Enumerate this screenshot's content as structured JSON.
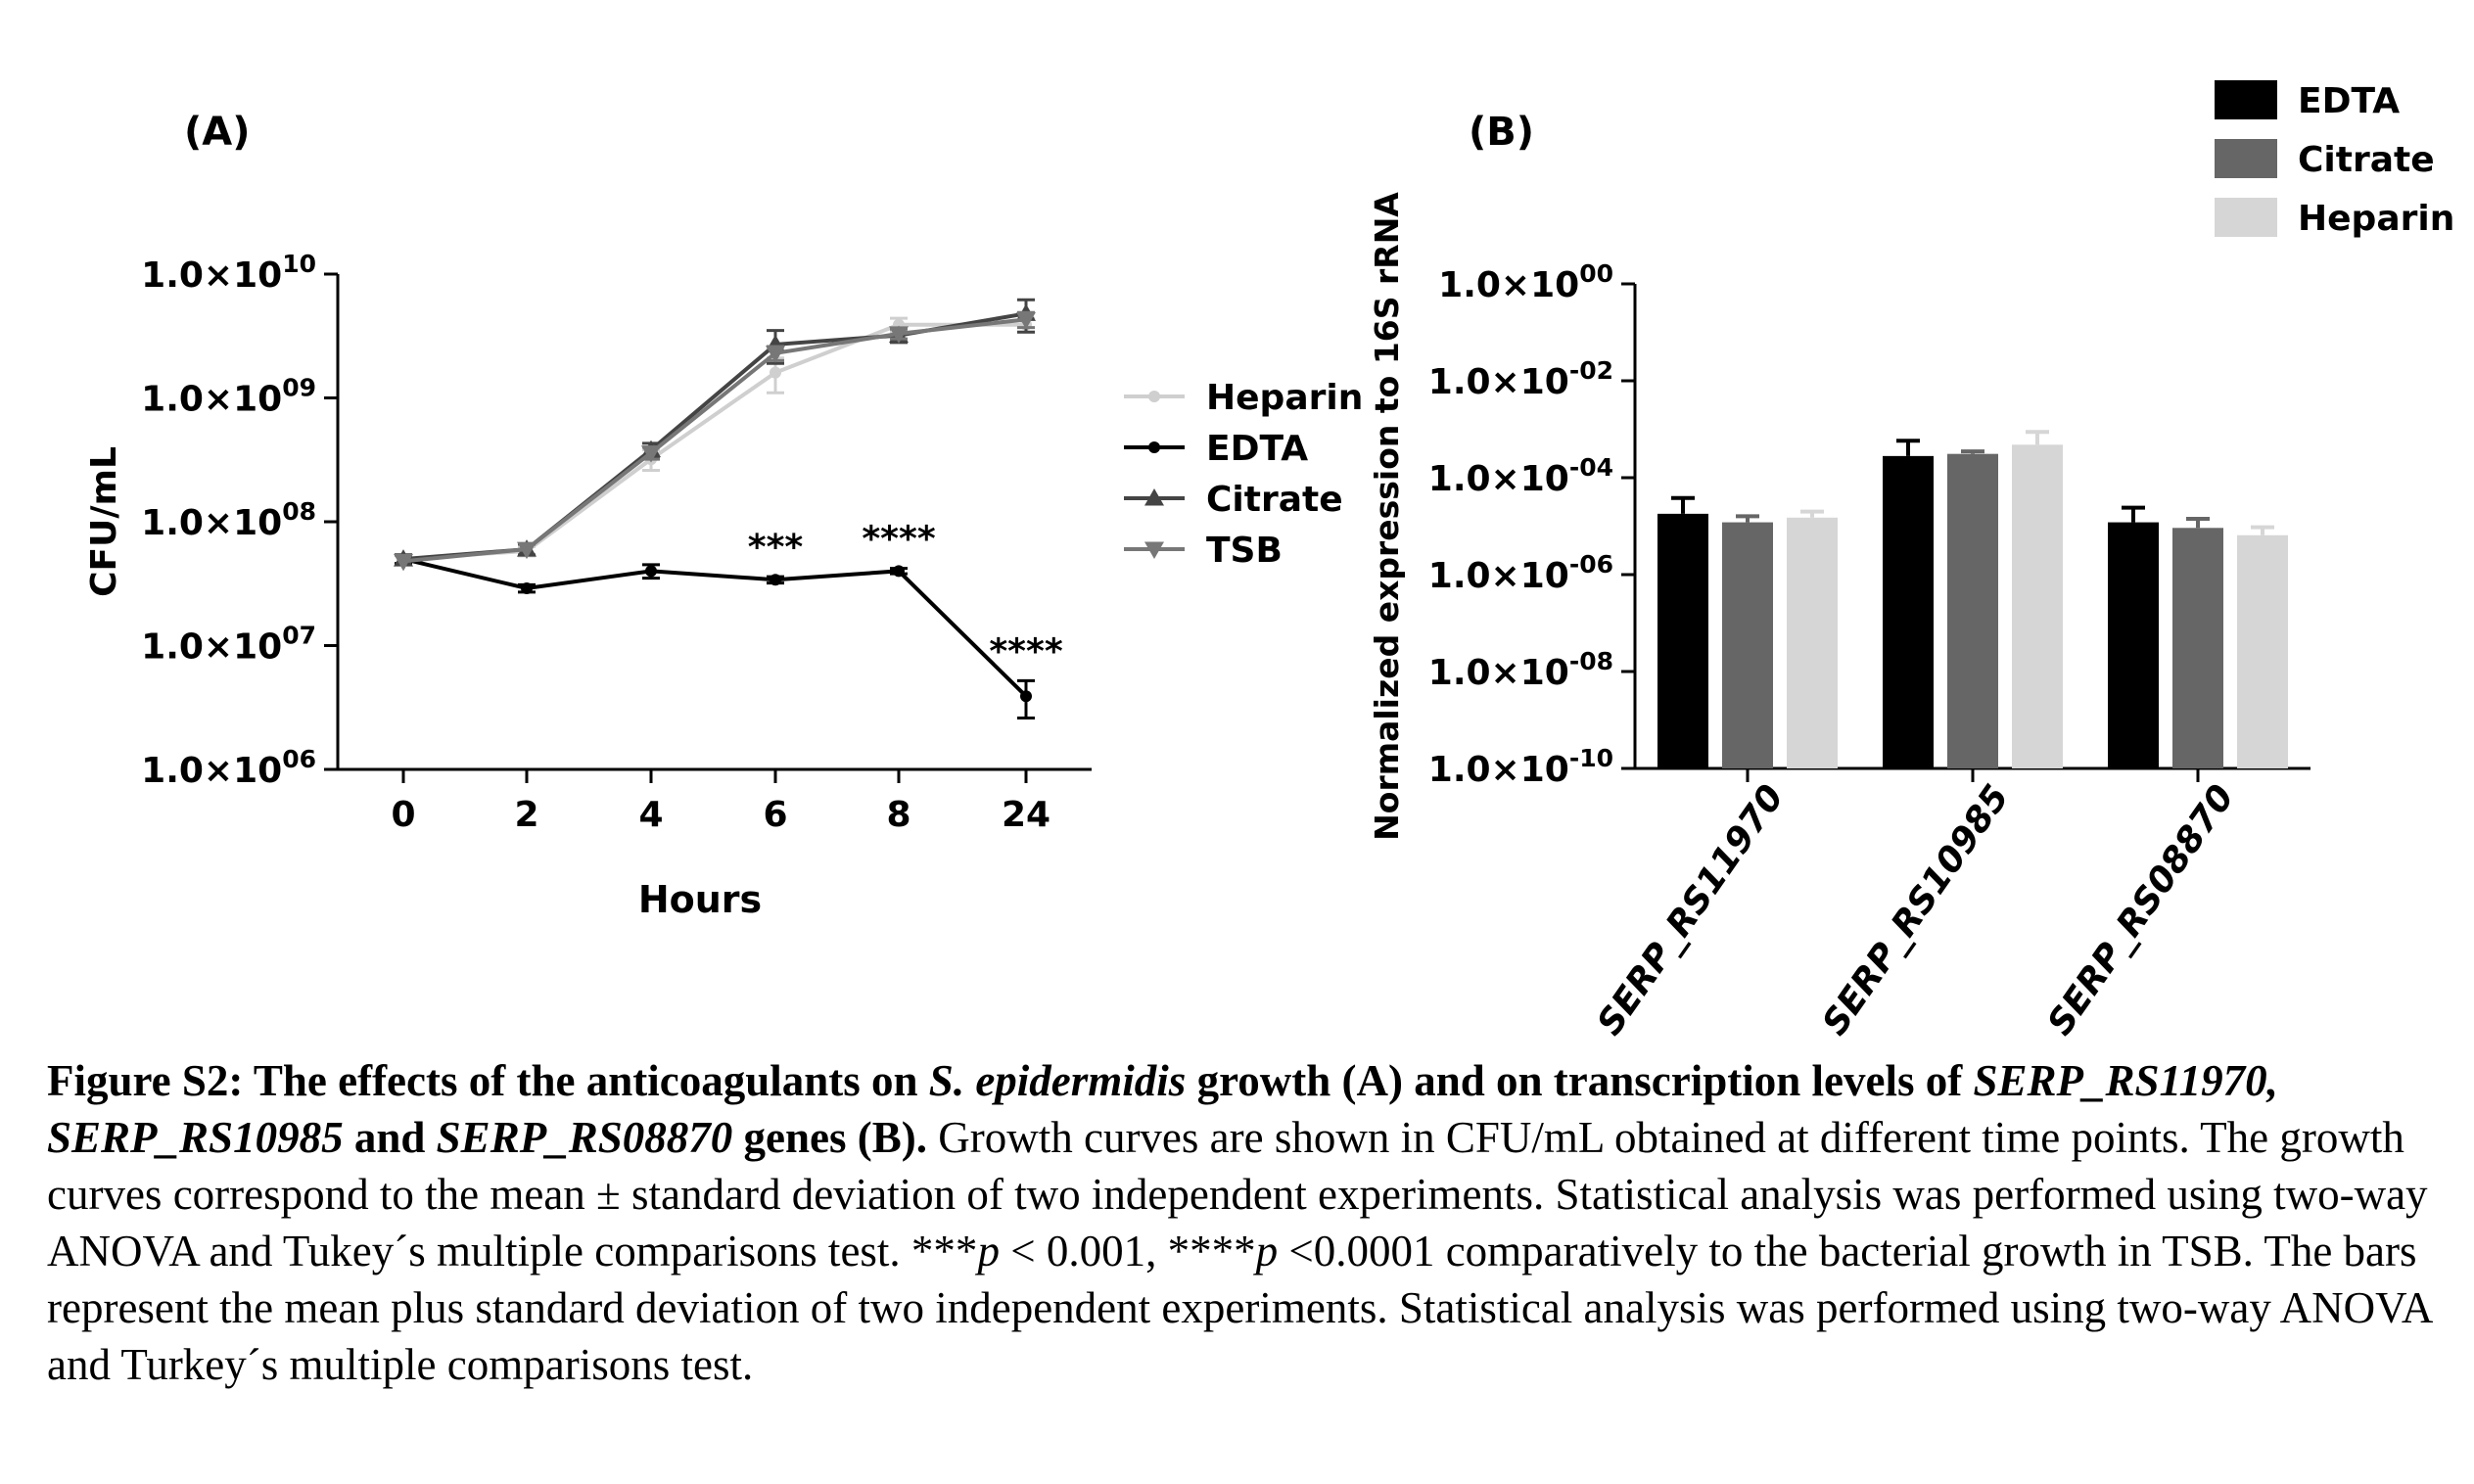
{
  "panel_a_label": "(A)",
  "panel_b_label": "(B)",
  "chart_data": [
    {
      "type": "line",
      "panel": "(A)",
      "xlabel": "Hours",
      "ylabel": "CFU/mL",
      "x": [
        "0",
        "2",
        "4",
        "6",
        "8",
        "24"
      ],
      "yscale": "log",
      "ylim": [
        1000000,
        10000000000
      ],
      "y_ticks": [
        {
          "value": 1000000,
          "mant": "1.0×",
          "base": "10",
          "exp": "06"
        },
        {
          "value": 10000000,
          "mant": "1.0×",
          "base": "10",
          "exp": "07"
        },
        {
          "value": 100000000,
          "mant": "1.0×",
          "base": "10",
          "exp": "08"
        },
        {
          "value": 1000000000,
          "mant": "1.0×",
          "base": "10",
          "exp": "09"
        },
        {
          "value": 10000000000,
          "mant": "1.0×",
          "base": "10",
          "exp": "10"
        }
      ],
      "legend_position": "right",
      "series": [
        {
          "name": "Heparin",
          "color": "#cfcfcf",
          "marker": "circle",
          "values": [
            50000000,
            58000000,
            320000000,
            1600000000,
            3900000000,
            3900000000
          ],
          "err": [
            0,
            5000000,
            60000000,
            500000000,
            500000000,
            500000000
          ]
        },
        {
          "name": "EDTA",
          "color": "#000000",
          "marker": "circle",
          "values": [
            50000000,
            29000000,
            40000000,
            34000000,
            40000000,
            3900000
          ],
          "err": [
            4000000,
            2000000,
            5000000,
            2000000,
            2000000,
            1300000
          ]
        },
        {
          "name": "Citrate",
          "color": "#444444",
          "marker": "triangle-up",
          "values": [
            50000000,
            60000000,
            380000000,
            2700000000,
            3200000000,
            4800000000
          ],
          "err": [
            0,
            6000000,
            50000000,
            800000000,
            400000000,
            1400000000
          ]
        },
        {
          "name": "TSB",
          "color": "#777777",
          "marker": "triangle-down",
          "values": [
            48000000,
            60000000,
            360000000,
            2300000000,
            3300000000,
            4300000000
          ],
          "err": [
            0,
            0,
            40000000,
            300000000,
            300000000,
            600000000
          ]
        }
      ],
      "annotations": [
        {
          "x": "6",
          "text": "***"
        },
        {
          "x": "8",
          "text": "****"
        },
        {
          "x": "24",
          "text": "****"
        }
      ]
    },
    {
      "type": "bar",
      "panel": "(B)",
      "ylabel": "Normalized expression to 16S rRNA",
      "categories": [
        "SERP_RS11970",
        "SERP_RS10985",
        "SERP_RS08870"
      ],
      "yscale": "log",
      "ylim": [
        1e-10,
        1
      ],
      "y_ticks": [
        {
          "value": 1,
          "mant": "1.0×",
          "base": "10",
          "exp": "00"
        },
        {
          "value": 0.01,
          "mant": "1.0×",
          "base": "10",
          "exp": "-02"
        },
        {
          "value": 0.0001,
          "mant": "1.0×",
          "base": "10",
          "exp": "-04"
        },
        {
          "value": 1e-06,
          "mant": "1.0×",
          "base": "10",
          "exp": "-06"
        },
        {
          "value": 1e-08,
          "mant": "1.0×",
          "base": "10",
          "exp": "-08"
        },
        {
          "value": 1e-10,
          "mant": "1.0×",
          "base": "10",
          "exp": "-10"
        }
      ],
      "legend_position": "top-right",
      "series": [
        {
          "name": "EDTA",
          "color": "#000000",
          "values": [
            1.8e-05,
            0.00028,
            1.2e-05
          ],
          "err": [
            2e-05,
            0.0003,
            1.2e-05
          ]
        },
        {
          "name": "Citrate",
          "color": "#666666",
          "values": [
            1.2e-05,
            0.00031,
            9.2e-06
          ],
          "err": [
            4e-06,
            4e-05,
            5e-06
          ]
        },
        {
          "name": "Heparin",
          "color": "#d6d6d6",
          "values": [
            1.5e-05,
            0.00048,
            6.5e-06
          ],
          "err": [
            5e-06,
            0.0004,
            3e-06
          ]
        }
      ]
    }
  ],
  "caption": {
    "bold_1": "Figure S2: The effects of the anticoagulants on ",
    "bold_italic_1": "S. epidermidis",
    "bold_2": " growth (A) and on transcription levels of ",
    "bold_italic_2": "SERP_RS11970, SERP_RS10985",
    "bold_3": " and ",
    "bold_italic_3": "SERP_RS08870",
    "bold_4": " genes (B).",
    "text_1": "  Growth curves are shown in CFU/mL obtained at different time points. The growth curves correspond to the mean ± standard deviation of two independent experiments. Statistical analysis was performed using two-way ANOVA and Tukey´s multiple comparisons test.  ***",
    "italic_p1": "p",
    "text_2": " < 0.001, ****",
    "italic_p2": "p",
    "text_3": " <0.0001 comparatively to the bacterial growth in TSB. The bars represent the mean plus standard deviation of two independent experiments. Statistical analysis was performed using two-way ANOVA and Turkey´s multiple comparisons test."
  }
}
